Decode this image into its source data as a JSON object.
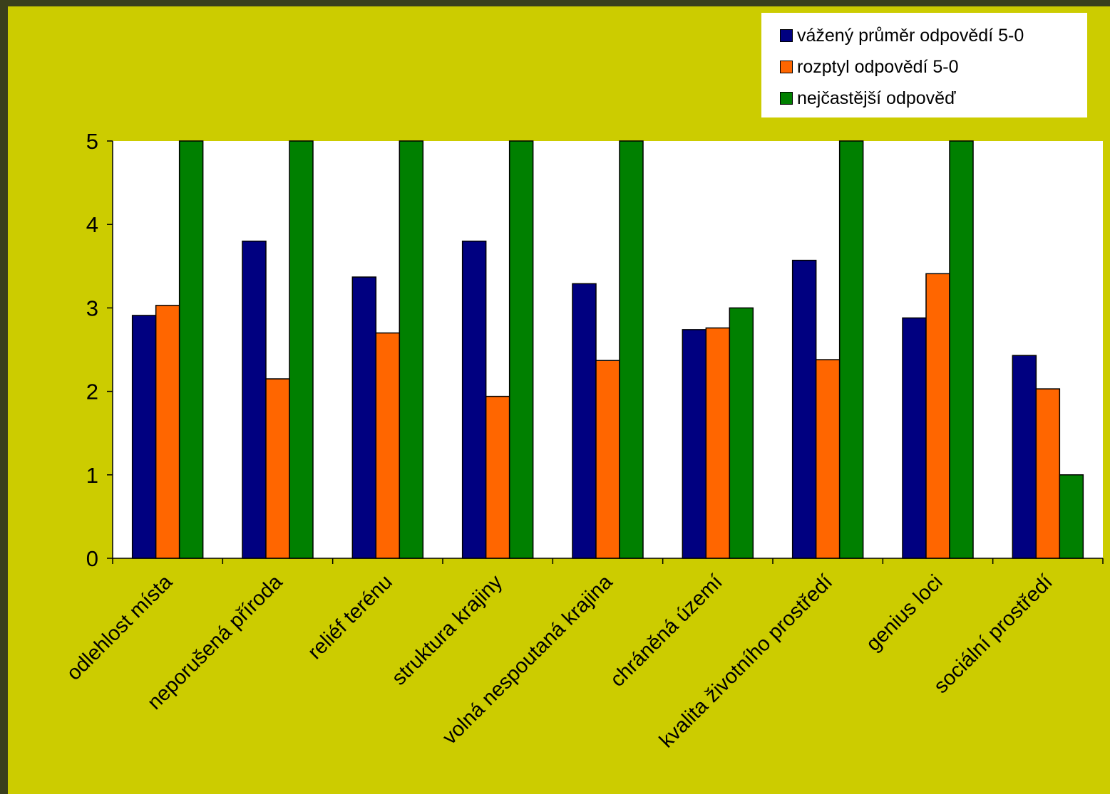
{
  "chart_data": {
    "type": "bar",
    "categories": [
      "odlehlost místa",
      "neporušená příroda",
      "reliéf terénu",
      "struktura krajiny",
      "volná nespoutaná krajina",
      "chráněná území",
      "kvalita životního prostředí",
      "genius loci",
      "sociální prostředí"
    ],
    "series": [
      {
        "name": "vážený průměr odpovědí 5-0",
        "color": "#000080",
        "values": [
          2.91,
          3.8,
          3.37,
          3.8,
          3.29,
          2.74,
          3.57,
          2.88,
          2.43
        ]
      },
      {
        "name": "rozptyl odpovědí 5-0",
        "color": "#ff6600",
        "values": [
          3.03,
          2.15,
          2.7,
          1.94,
          2.37,
          2.76,
          2.38,
          3.41,
          2.03
        ]
      },
      {
        "name": "nejčastější odpověď",
        "color": "#008000",
        "values": [
          5,
          5,
          5,
          5,
          5,
          3,
          5,
          5,
          1
        ]
      }
    ],
    "ylim": [
      0,
      5
    ],
    "yticks": [
      "0",
      "1",
      "2",
      "3",
      "4",
      "5"
    ],
    "title": "",
    "xlabel": "",
    "ylabel": "",
    "grid": false,
    "legend_position": "top-right",
    "plot_background": "#ffffff",
    "slide_background": "#cccc00"
  }
}
